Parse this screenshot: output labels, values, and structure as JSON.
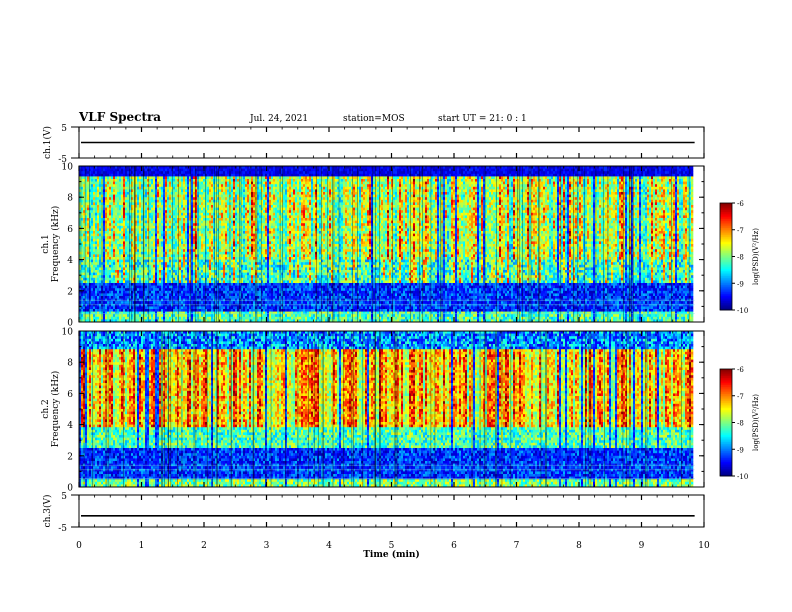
{
  "header": {
    "title": "VLF Spectra",
    "date": "Jul. 24, 2021",
    "station": "station=MOS",
    "start_ut": "start UT =  21: 0  : 1"
  },
  "chart_data": {
    "type": "heatmap",
    "time_axis": {
      "label": "Time (min)",
      "range": [
        0,
        10
      ],
      "ticks": [
        0,
        1,
        2,
        3,
        4,
        5,
        6,
        7,
        8,
        9,
        10
      ],
      "data_extent_min": 9.85
    },
    "panels": [
      {
        "id": "ch1v",
        "type": "line",
        "ylabel": "ch.1(V)",
        "yticks": [
          "5",
          "-5"
        ],
        "ylim": [
          -5,
          5
        ],
        "level": 0
      },
      {
        "id": "ch1",
        "type": "heatmap",
        "ylabel_top": "ch.1",
        "ylabel": "Frequency (kHz)",
        "yticks": [
          0,
          2,
          4,
          6,
          8,
          10
        ],
        "ylim": [
          0,
          10
        ],
        "upper_band_khz": [
          4,
          9.2
        ],
        "colorbar": {
          "label": "log(PSD)(V²/Hz)",
          "ticks": [
            "-6",
            "-7",
            "-8",
            "-9",
            "-10"
          ],
          "range": [
            -10,
            -6
          ]
        }
      },
      {
        "id": "ch2",
        "type": "heatmap",
        "ylabel_top": "ch.2",
        "ylabel": "Frequency (kHz)",
        "yticks": [
          0,
          2,
          4,
          6,
          8,
          10
        ],
        "ylim": [
          0,
          10
        ],
        "band_khz": [
          3.5,
          8.5
        ],
        "colorbar": {
          "label": "log(PSD)(V²/Hz)",
          "ticks": [
            "-6",
            "-7",
            "-8",
            "-9",
            "-10"
          ],
          "range": [
            -10,
            -6
          ]
        }
      },
      {
        "id": "ch3v",
        "type": "line",
        "ylabel": "ch.3(V)",
        "yticks": [
          "5",
          "-5"
        ],
        "ylim": [
          -5,
          5
        ],
        "level": -1.5
      }
    ]
  }
}
